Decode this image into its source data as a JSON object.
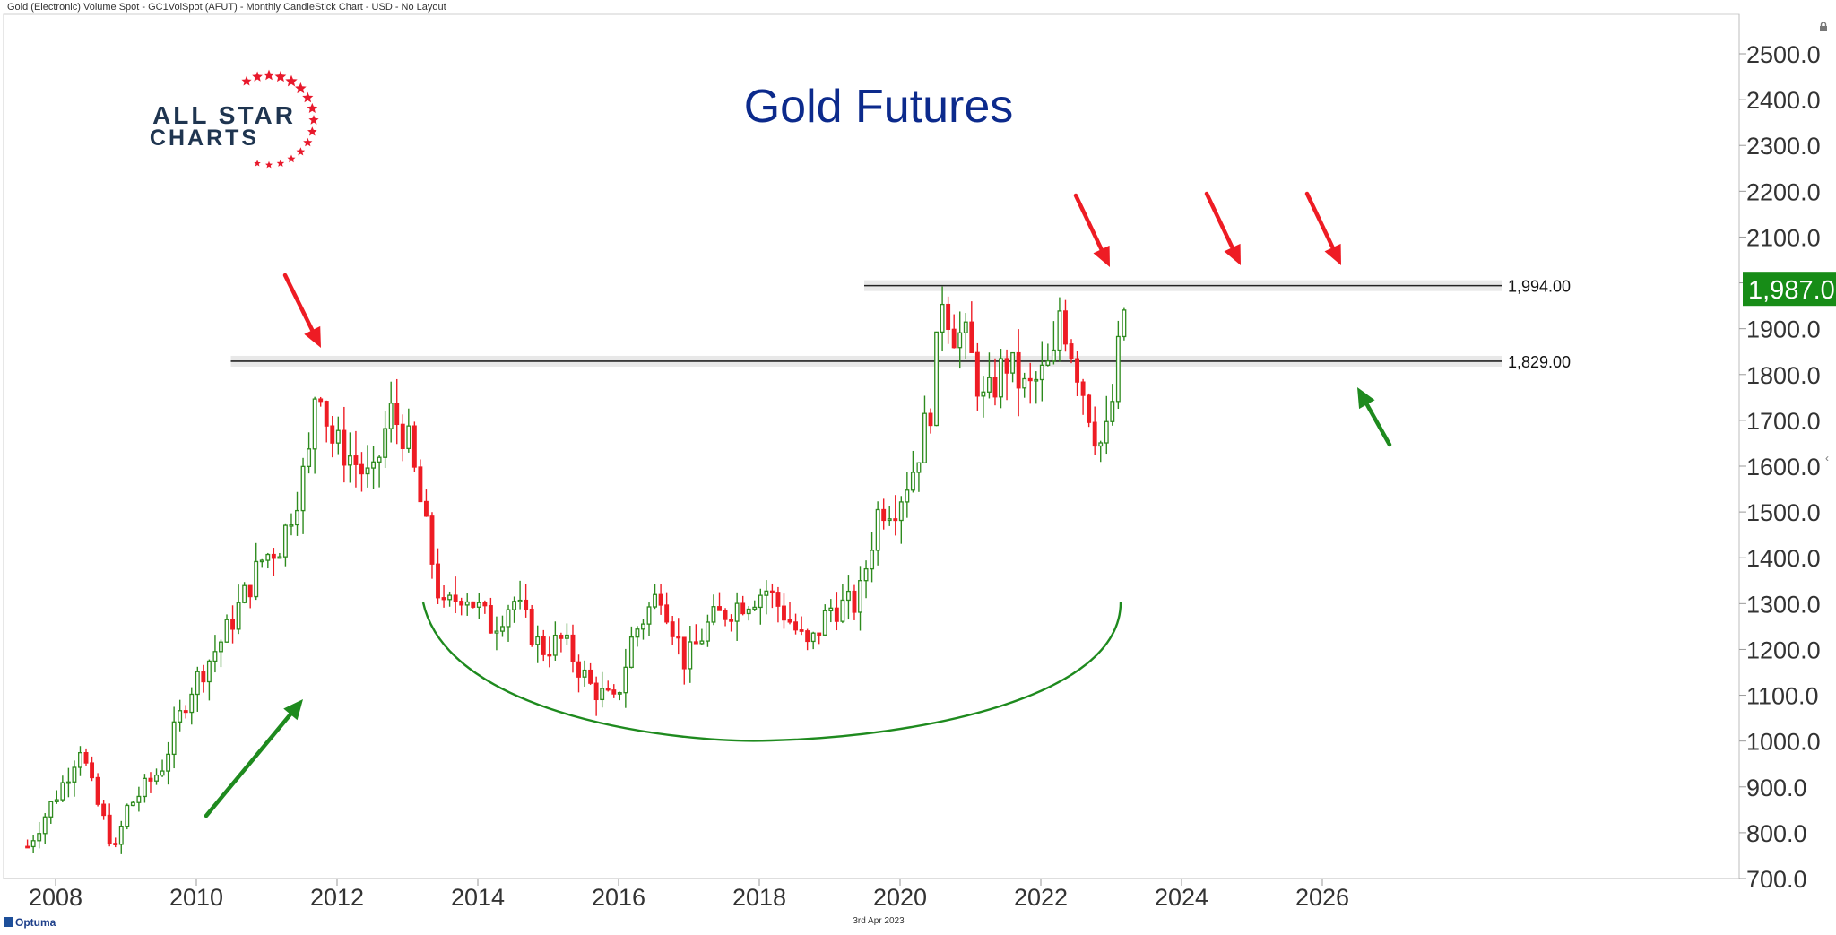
{
  "header": {
    "title": "Gold (Electronic) Volume Spot - GC1VolSpot (AFUT) - Monthly CandleStick Chart - USD - No Layout"
  },
  "chart_title": "Gold Futures",
  "logo": {
    "line1": "ALL STAR",
    "line2": "CHARTS",
    "text_color": "#1f3550",
    "star_color": "#e8192c"
  },
  "footer": {
    "date": "3rd Apr 2023",
    "vendor": "Optuma"
  },
  "colors": {
    "up": "#2e8b1e",
    "down": "#ee1c24",
    "arrow_red": "#ee1c24",
    "arrow_green": "#1e8a1e",
    "cup": "#1e8a1e",
    "last_price_bg": "#178c17",
    "axis_text": "#333333",
    "title": "#0c2a8c"
  },
  "chart_data": {
    "type": "candlestick",
    "xlim": [
      2007.6,
      2027.0
    ],
    "ylim": [
      700,
      2550
    ],
    "x_ticks": [
      2008,
      2010,
      2012,
      2014,
      2016,
      2018,
      2020,
      2022,
      2024,
      2026
    ],
    "y_ticks": [
      "2500.0",
      "2400.0",
      "2300.0",
      "2200.0",
      "2100.0",
      "2000.0",
      "1900.0",
      "1800.0",
      "1700.0",
      "1600.0",
      "1500.0",
      "1400.0",
      "1300.0",
      "1200.0",
      "1100.0",
      "1000.0",
      "900.0",
      "800.0",
      "700.0"
    ],
    "last_price": "1,987.0",
    "last_value": 1987,
    "levels": [
      {
        "value": 1994,
        "label": "1,994.00",
        "x_start": 2020.0
      },
      {
        "value": 1829,
        "label": "1,829.00",
        "x_start": 2011.0
      }
    ],
    "anchors": [
      [
        2007.6,
        770
      ],
      [
        2008.15,
        920
      ],
      [
        2008.35,
        990
      ],
      [
        2008.55,
        880
      ],
      [
        2008.85,
        760
      ],
      [
        2009.0,
        850
      ],
      [
        2009.5,
        940
      ],
      [
        2009.9,
        1110
      ],
      [
        2010.4,
        1230
      ],
      [
        2010.95,
        1400
      ],
      [
        2011.2,
        1430
      ],
      [
        2011.6,
        1620
      ],
      [
        2011.72,
        1820
      ],
      [
        2011.9,
        1660
      ],
      [
        2012.2,
        1620
      ],
      [
        2012.5,
        1560
      ],
      [
        2012.75,
        1720
      ],
      [
        2013.0,
        1660
      ],
      [
        2013.25,
        1470
      ],
      [
        2013.5,
        1280
      ],
      [
        2013.8,
        1330
      ],
      [
        2014.2,
        1250
      ],
      [
        2014.5,
        1310
      ],
      [
        2014.9,
        1200
      ],
      [
        2015.2,
        1220
      ],
      [
        2015.6,
        1120
      ],
      [
        2015.95,
        1080
      ],
      [
        2016.2,
        1230
      ],
      [
        2016.6,
        1330
      ],
      [
        2016.95,
        1170
      ],
      [
        2017.3,
        1260
      ],
      [
        2017.7,
        1300
      ],
      [
        2018.1,
        1330
      ],
      [
        2018.4,
        1270
      ],
      [
        2018.7,
        1200
      ],
      [
        2019.0,
        1290
      ],
      [
        2019.4,
        1300
      ],
      [
        2019.7,
        1510
      ],
      [
        2019.95,
        1520
      ],
      [
        2020.2,
        1600
      ],
      [
        2020.45,
        1740
      ],
      [
        2020.6,
        1980
      ],
      [
        2020.75,
        1900
      ],
      [
        2020.95,
        1870
      ],
      [
        2021.2,
        1730
      ],
      [
        2021.5,
        1830
      ],
      [
        2021.8,
        1760
      ],
      [
        2022.2,
        1830
      ],
      [
        2022.25,
        1950
      ],
      [
        2022.45,
        1850
      ],
      [
        2022.8,
        1660
      ],
      [
        2022.9,
        1640
      ],
      [
        2023.05,
        1770
      ],
      [
        2023.15,
        1920
      ],
      [
        2023.25,
        1987
      ]
    ]
  }
}
